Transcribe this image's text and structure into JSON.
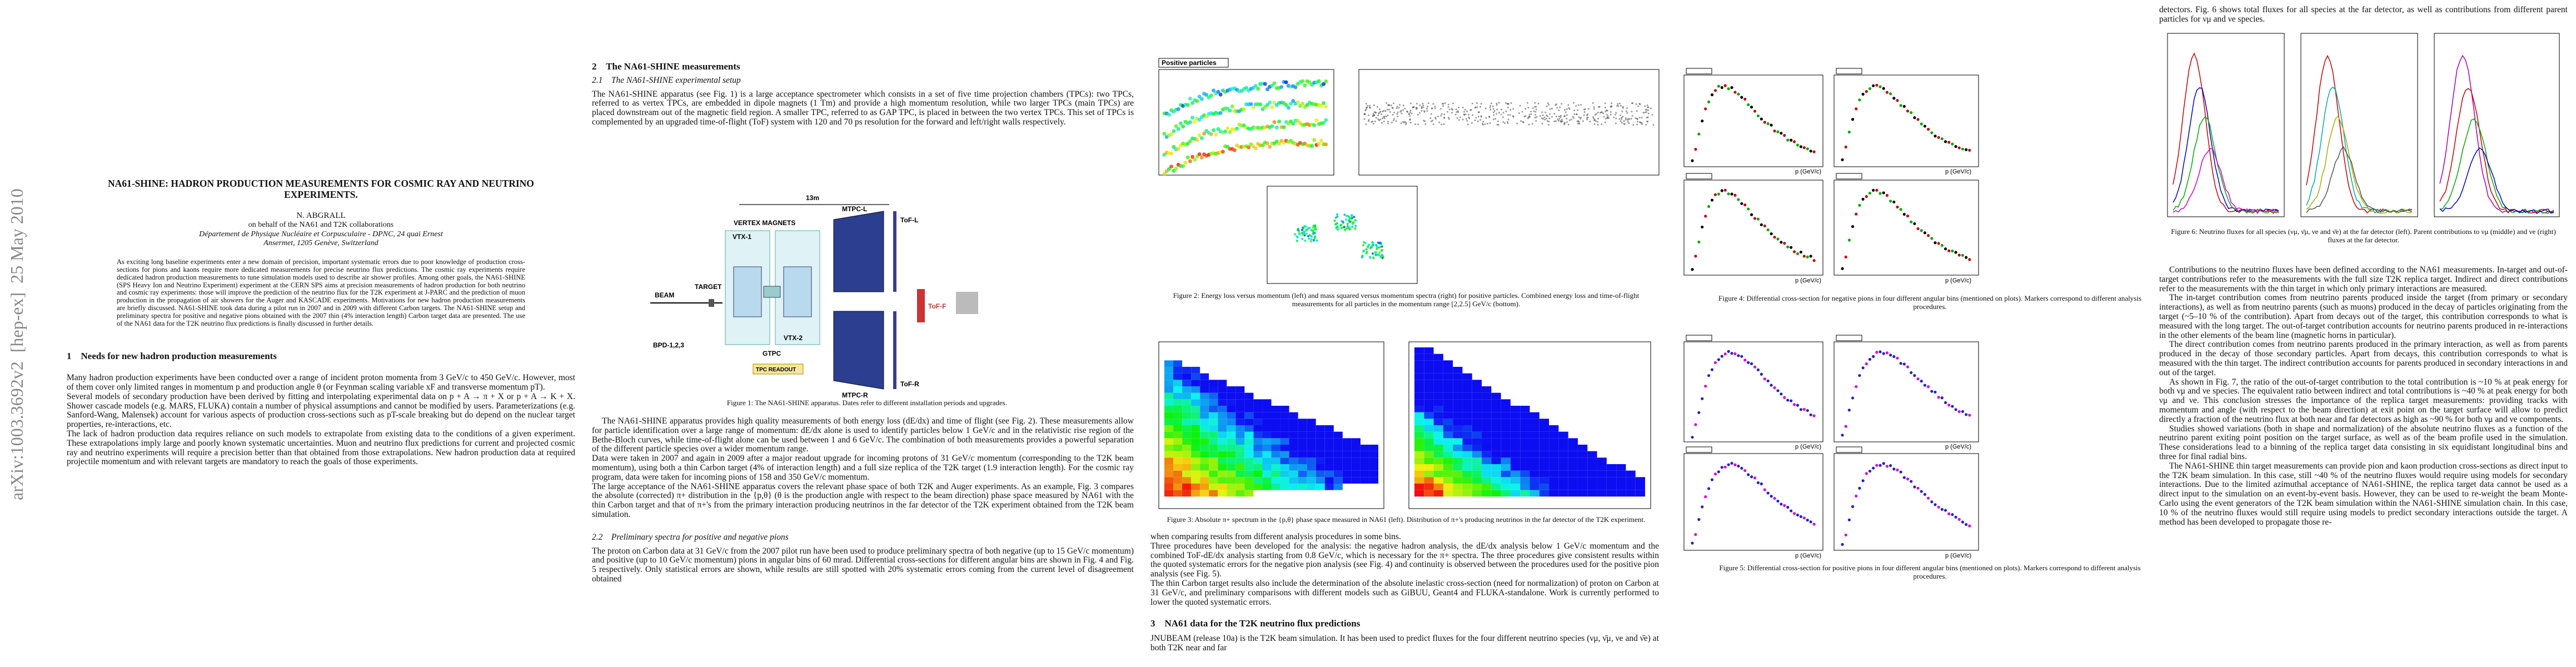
{
  "sidebar": "arXiv:1003.3692v2  [hep-ex]  25 May 2010",
  "page1": {
    "title": "NA61-SHINE: HADRON PRODUCTION MEASUREMENTS FOR COSMIC RAY AND NEUTRINO EXPERIMENTS.",
    "author": "N. ABGRALL",
    "on_behalf": "on behalf of the NA61 and T2K collaborations",
    "institute": "Département de Physique Nucléaire et Corpusculaire - DPNC, 24 quai Ernest Ansermet, 1205 Genève, Switzerland",
    "abstract": "As exciting long baseline experiments enter a new domain of precision, important systematic errors due to poor knowledge of production cross-sections for pions and kaons require more dedicated measurements for precise neutrino flux predictions. The cosmic ray experiments require dedicated hadron production measurements to tune simulation models used to describe air shower profiles. Among other goals, the NA61-SHINE (SPS Heavy Ion and Neutrino Experiment) experiment at the CERN SPS aims at precision measurements of hadron production for both neutrino and cosmic ray experiments: those will improve the prediction of the neutrino flux for the T2K experiment at J-PARC and the prediction of muon production in the propagation of air showers for the Auger and KASCADE experiments. Motivations for new hadron production measurements are briefly discussed. NA61-SHINE took data during a pilot run in 2007 and in 2009 with different Carbon targets. The NA61-SHINE setup and preliminary spectra for positive and negative pions obtained with the 2007 thin (4% interaction length) Carbon target data are presented. The use of the NA61 data for the T2K neutrino flux predictions is finally discussed in further details.",
    "section1_heading": "1    Needs for new hadron production measurements",
    "section1_paragraphs": [
      "Many hadron production experiments have been conducted over a range of incident proton momenta from 3 GeV/c to 450 GeV/c. However, most of them cover only limited ranges in momentum p and production angle θ (or Feynman scaling variable xF and transverse momentum pT).",
      "Several models of secondary production have been derived by fitting and interpolating experimental data on p + A → π + X or p + A → K + X. Shower cascade models (e.g. MARS, FLUKA) contain a number of physical assumptions and cannot be modified by users. Parameterizations (e.g. Sanford-Wang, Malensek) account for various aspects of production cross-sections such as pT-scale breaking but do depend on the nuclear target properties, re-interactions, etc.",
      "The lack of hadron production data requires reliance on such models to extrapolate from existing data to the conditions of a given experiment. These extrapolations imply large and poorly known systematic uncertainties. Muon and neutrino flux predictions for current and projected cosmic ray and neutrino experiments will require a precision better than that obtained from those extrapolations. New hadron production data at required projectile momentum and with relevant targets are mandatory to reach the goals of those experiments."
    ]
  },
  "page2": {
    "section2_heading": "2    The NA61-SHINE measurements",
    "subsection1_heading": "2.1    The NA61-SHINE experimental setup",
    "paragraph1": "The NA61-SHINE apparatus (see Fig. 1) is a large acceptance spectrometer which consists in a set of five time projection chambers (TPCs): two TPCs, referred to as vertex TPCs, are embedded in dipole magnets (1 Tm) and provide a high momentum resolution, while two larger TPCs (main TPCs) are placed downstream out of the magnetic field region. A smaller TPC, referred to as GAP TPC, is placed in between the two vertex TPCs. This set of TPCs is complemented by an upgraded time-of-flight (ToF) system with 120 and 70 ps resolution for the forward and left/right walls respectively.",
    "figure1": {
      "labels": [
        "13m",
        "VERTEX MAGNETS",
        "VTX-1",
        "VTX-2",
        "GTPC",
        "MTPC-L",
        "MTPC-R",
        "ToF-L",
        "ToF-R",
        "ToF-F",
        "BEAM",
        "TARGET",
        "BPD-1,2,3",
        "TPC READOUT"
      ],
      "caption": "Figure 1: The NA61-SHINE apparatus. Dates refer to different installation periods and upgrades."
    },
    "paragraphs": [
      "The NA61-SHINE apparatus provides high quality measurements of both energy loss (dE/dx) and time of flight (see Fig. 2). These measurements allow for particle identification over a large range of momentum: dE/dx alone is used to identify particles below 1 GeV/c and in the relativistic rise region of the Bethe-Bloch curves, while time-of-flight alone can be used between 1 and 6 GeV/c. The combination of both measurements provides a powerful separation of the different particle species over a wider momentum range.",
      "Data were taken in 2007 and again in 2009 after a major readout upgrade for incoming protons of 31 GeV/c momentum (corresponding to the T2K beam momentum), using both a thin Carbon target (4% of interaction length) and a full size replica of the T2K target (1.9 interaction length). For the cosmic ray program, data were taken for incoming pions of 158 and 350 GeV/c momentum.",
      "The large acceptance of the NA61-SHINE apparatus covers the relevant phase space of both T2K and Auger experiments. As an example, Fig. 3 compares the absolute (corrected) π+ distribution in the {p,θ} (θ is the production angle with respect to the beam direction) phase space measured by NA61 with the thin Carbon target and that of π+'s from the primary interaction producing neutrinos in the far detector of the T2K experiment obtained from the T2K beam simulation."
    ],
    "subsection2_heading": "2.2    Preliminary spectra for positive and negative pions",
    "paragraph_last": "The proton on Carbon data at 31 GeV/c from the 2007 pilot run have been used to produce preliminary spectra of both negative (up to 15 GeV/c momentum) and positive (up to 10 GeV/c momentum) pions in angular bins of 60 mrad. Differential cross-sections for different angular bins are shown in Fig. 4 and Fig. 5 respectively. Only statistical errors are shown, while results are still spotted with 20% systematic errors coming from the current level of disagreement obtained"
  },
  "page3": {
    "figure2": {
      "panel_title": "Positive particles",
      "caption": "Figure 2: Energy loss versus momentum (left) and mass squared versus momentum spectra (right) for positive particles. Combined energy loss and time-of-flight measurements for all particles in the momentum range [2,2.5] GeV/c (bottom)."
    },
    "figure3": {
      "caption": "Figure 3: Absolute π+ spectrum in the {p,θ} phase space measured in NA61 (left). Distribution of π+'s producing neutrinos in the far detector of the T2K experiment."
    },
    "paragraphs": [
      "when comparing results from different analysis procedures in some bins.",
      "Three procedures have been developed for the analysis: the negative hadron analysis, the dE/dx analysis below 1 GeV/c momentum and the combined ToF-dE/dx analysis starting from 0.8 GeV/c, which is necessary for the π+ spectra. The three procedures give consistent results within the quoted systematic errors for the negative pion analysis (see Fig. 4) and continuity is observed between the procedures used for the positive pion analysis (see Fig. 5).",
      "The thin Carbon target results also include the determination of the absolute inelastic cross-section (need for normalization) of proton on Carbon at 31 GeV/c, and preliminary comparisons with different models such as GiBUU, Geant4 and FLUKA-standalone. Work is currently performed to lower the quoted systematic errors."
    ],
    "section3_heading": "3    NA61 data for the T2K neutrino flux predictions",
    "paragraph_last": "JNUBEAM (release 10a) is the T2K beam simulation. It has been used to predict fluxes for the four different neutrino species (νμ, ν̄μ, νe and ν̄e) at both T2K near and far"
  },
  "page4": {
    "axis_label": "p (GeV/c)",
    "figure4_caption": "Figure 4: Differential cross-section for negative pions in four different angular bins (mentioned on plots). Markers correspond to different analysis procedures.",
    "figure5_caption": "Figure 5: Differential cross-section for positive pions in four different angular bins (mentioned on plots). Markers correspond to different analysis procedures."
  },
  "page5": {
    "paragraph_first": "detectors. Fig. 6 shows total fluxes for all species at the far detector, as well as contributions from different parent particles for νμ and νe species.",
    "figure6_caption": "Figure 6: Neutrino fluxes for all species (νμ, ν̄μ, νe and ν̄e) at the far detector (left). Parent contributions to νμ (middle) and νe (right) fluxes at the far detector.",
    "paragraphs": [
      "Contributions to the neutrino fluxes have been defined according to the NA61 measurements. In-target and out-of-target contributions refer to the measurements with the full size T2K replica target. Indirect and direct contributions refer to the measurements with the thin target in which only primary interactions are measured.",
      "The in-target contribution comes from neutrino parents produced inside the target (from primary or secondary interactions), as well as from neutrino parents (such as muons) produced in the decay of particles originating from the target (~5–10 % of the contribution). Apart from decays out of the target, this contribution corresponds to what is measured with the long target. The out-of-target contribution accounts for neutrino parents produced in re-interactions in the other elements of the beam line (magnetic horns in particular).",
      "The direct contribution comes from neutrino parents produced in the primary interaction, as well as from parents produced in the decay of those secondary particles. Apart from decays, this contribution corresponds to what is measured with the thin target. The indirect contribution accounts for parents produced in secondary interactions in and out of the target.",
      "As shown in Fig. 7, the ratio of the out-of-target contribution to the total contribution is ~10 % at peak energy for both νμ and νe species. The equivalent ratio between indirect and total contributions is ~40 % at peak energy for both νμ and νe. This conclusion stresses the importance of the replica target measurements: providing tracks with momentum and angle (with respect to the beam direction) at exit point on the target surface will allow to predict directly a fraction of the neutrino flux at both near and far detectors as high as ~90 % for both νμ and νe components.",
      "Studies showed variations (both in shape and normalization) of the absolute neutrino fluxes as a function of the neutrino parent exiting point position on the target surface, as well as of the beam profile used in the simulation. These considerations lead to a binning of the replica target data consisting in six equidistant longitudinal bins and three for final radial bins.",
      "The NA61-SHINE thin target measurements can provide pion and kaon production cross-sections as direct input to the T2K beam simulation. In this case, still ~40 % of the neutrino fluxes would require using models for secondary interactions. Due to the limited azimuthal acceptance of NA61-SHINE, the replica target data cannot be used as a direct input to the simulation on an event-by-event basis. However, they can be used to re-weight the beam Monte-Carlo using the event generators of the T2K beam simulation within the NA61-SHINE simulation chain. In this case, 10 % of the neutrino fluxes would still require using models to predict secondary interactions outside the target. A method has been developed to propagate those re-"
    ]
  }
}
